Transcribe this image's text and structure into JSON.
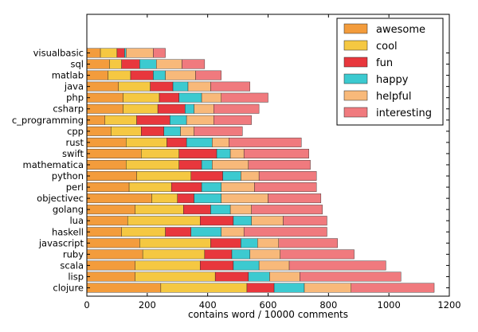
{
  "chart_data": {
    "type": "bar",
    "orientation": "horizontal",
    "stacked": true,
    "xlabel": "contains word / 10000 comments",
    "ylabel": "",
    "xlim": [
      0,
      1200
    ],
    "xticks": [
      0,
      200,
      400,
      600,
      800,
      1000,
      1200
    ],
    "grid": false,
    "legend_position": "top-right",
    "categories": [
      "visualbasic",
      "sql",
      "matlab",
      "java",
      "php",
      "csharp",
      "c_programming",
      "cpp",
      "rust",
      "swift",
      "mathematica",
      "python",
      "perl",
      "objectivec",
      "golang",
      "lua",
      "haskell",
      "javascript",
      "ruby",
      "scala",
      "lisp",
      "clojure"
    ],
    "series": [
      {
        "name": "awesome",
        "color": "#f39c3c",
        "values": [
          45,
          75,
          70,
          105,
          120,
          120,
          60,
          80,
          130,
          180,
          130,
          165,
          140,
          215,
          160,
          135,
          115,
          175,
          185,
          160,
          160,
          245
        ]
      },
      {
        "name": "cool",
        "color": "#f5c842",
        "values": [
          55,
          40,
          75,
          105,
          120,
          115,
          105,
          100,
          135,
          125,
          175,
          180,
          140,
          85,
          160,
          240,
          145,
          235,
          205,
          215,
          265,
          285
        ]
      },
      {
        "name": "fun",
        "color": "#e8373d",
        "values": [
          25,
          60,
          75,
          75,
          65,
          90,
          110,
          75,
          65,
          125,
          75,
          105,
          100,
          55,
          90,
          110,
          85,
          100,
          90,
          110,
          110,
          90
        ]
      },
      {
        "name": "happy",
        "color": "#3ccad0",
        "values": [
          5,
          55,
          40,
          50,
          75,
          30,
          55,
          55,
          85,
          45,
          35,
          60,
          65,
          90,
          65,
          60,
          100,
          55,
          60,
          85,
          70,
          100
        ]
      },
      {
        "name": "helpful",
        "color": "#f8b97a",
        "values": [
          90,
          85,
          100,
          75,
          65,
          65,
          90,
          45,
          55,
          45,
          120,
          60,
          110,
          155,
          70,
          105,
          75,
          70,
          100,
          100,
          100,
          155
        ]
      },
      {
        "name": "interesting",
        "color": "#f07a7e",
        "values": [
          40,
          75,
          85,
          130,
          155,
          150,
          125,
          160,
          240,
          215,
          205,
          190,
          205,
          175,
          235,
          145,
          275,
          195,
          245,
          320,
          335,
          275
        ]
      }
    ]
  }
}
